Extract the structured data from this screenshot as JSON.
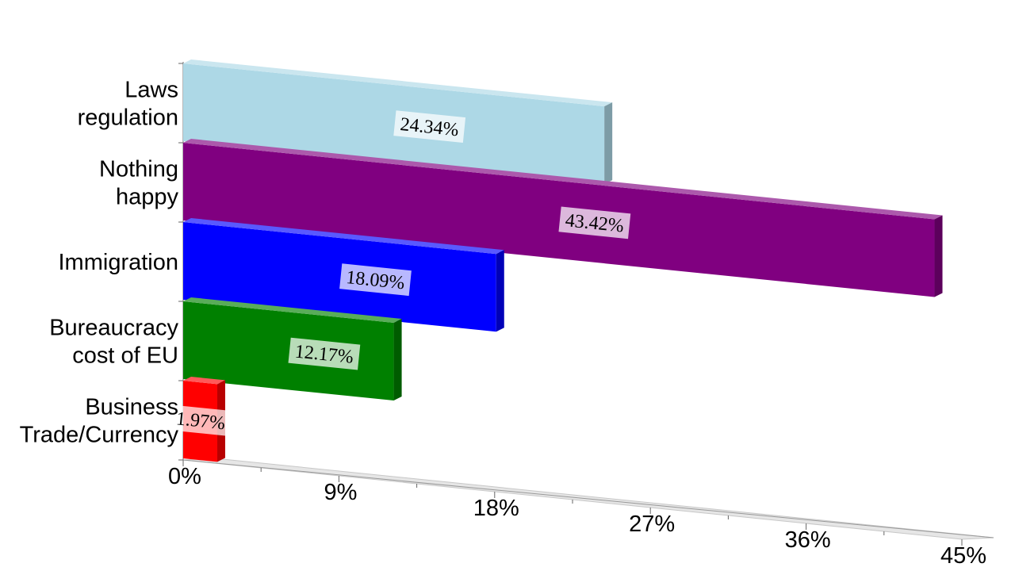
{
  "chart_data": {
    "type": "bar",
    "orientation": "horizontal",
    "style": "3d-perspective",
    "categories": [
      [
        "Laws",
        "regulation"
      ],
      [
        "Nothing",
        "happy"
      ],
      [
        "Immigration"
      ],
      [
        "Bureaucracy",
        "cost of EU"
      ],
      [
        "Business",
        "Trade/Currency"
      ]
    ],
    "values": [
      24.34,
      43.42,
      18.09,
      12.17,
      1.97
    ],
    "data_labels": [
      "24.34%",
      "43.42%",
      "18.09%",
      "12.17%",
      "1.97%"
    ],
    "colors": [
      "#add8e6",
      "#800080",
      "#0000ff",
      "#008000",
      "#ff0000"
    ],
    "x_ticks": [
      "0%",
      "9%",
      "18%",
      "27%",
      "36%",
      "45%"
    ],
    "xlim": [
      0,
      45
    ],
    "title": "",
    "xlabel": "",
    "ylabel": "",
    "grid": false,
    "legend": "none"
  }
}
